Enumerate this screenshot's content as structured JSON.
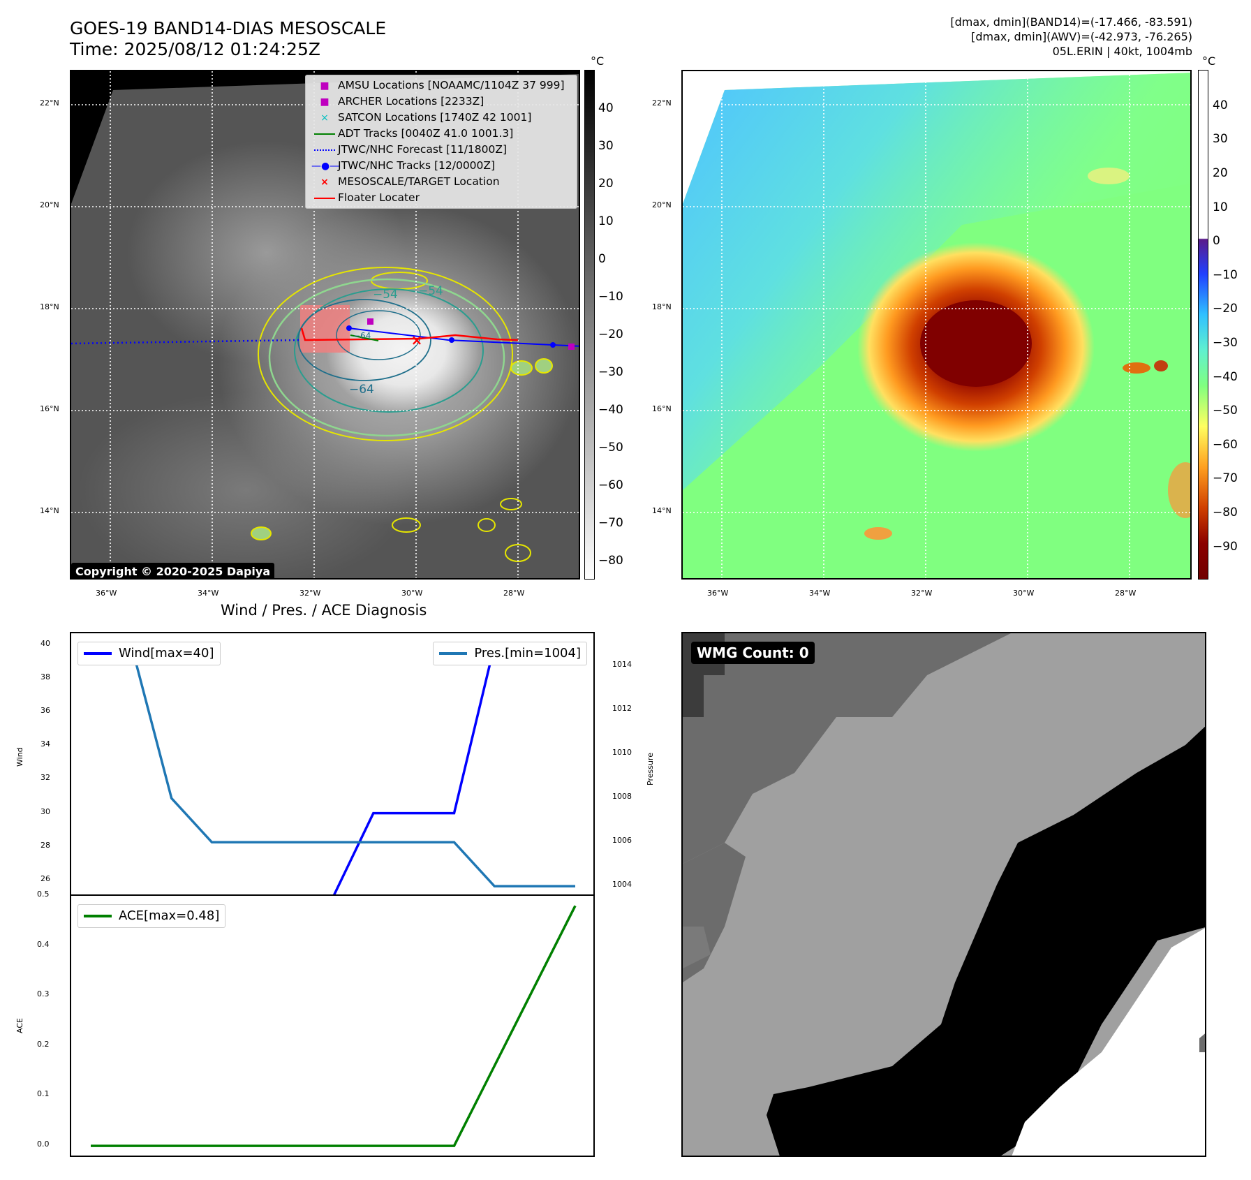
{
  "header": {
    "title_line1": "GOES-19 BAND14-DIAS MESOSCALE",
    "title_line2": "Time: 2025/08/12 01:24:25Z",
    "info_line1": "[dmax, dmin](BAND14)=(-17.466, -83.591)",
    "info_line2": "[dmax, dmin](AWV)=(-42.973, -76.265)",
    "info_line3": "05L.ERIN | 40kt, 1004mb"
  },
  "map_axes": {
    "lat_labels": [
      "22°N",
      "20°N",
      "18°N",
      "16°N",
      "14°N"
    ],
    "lon_labels": [
      "36°W",
      "34°W",
      "32°W",
      "30°W",
      "28°W"
    ],
    "unit": "°C"
  },
  "ir_panel": {
    "colorbar_ticks": [
      "40",
      "30",
      "20",
      "10",
      "0",
      "−10",
      "−20",
      "−30",
      "−40",
      "−50",
      "−60",
      "−70",
      "−80"
    ],
    "contour_labels": [
      "−54",
      "−54",
      "−64",
      "−64"
    ],
    "copyright": "Copyright © 2020-2025 Dapiya",
    "legend": [
      {
        "symbol": "■",
        "color": "#bf00bf",
        "label": "AMSU Locations [NOAAMC/1104Z 37 999]"
      },
      {
        "symbol": "■",
        "color": "#bf00bf",
        "label": "ARCHER Locations [2233Z]"
      },
      {
        "symbol": "×",
        "color": "#00bfbf",
        "label": "SATCON Locations [1740Z 42 1001]"
      },
      {
        "symbol": "line",
        "color": "#008000",
        "label": "ADT Tracks [0040Z 41.0 1001.3]"
      },
      {
        "symbol": "dotted",
        "color": "#0000ff",
        "label": "JTWC/NHC Forecast [11/1800Z]"
      },
      {
        "symbol": "dotline",
        "color": "#0000ff",
        "label": "JTWC/NHC Tracks [12/0000Z]"
      },
      {
        "symbol": "×",
        "color": "#ff0000",
        "label": "MESOSCALE/TARGET Location"
      },
      {
        "symbol": "line",
        "color": "#ff0000",
        "label": "Floater Locater"
      }
    ]
  },
  "awv_panel": {
    "colorbar_ticks": [
      "40",
      "30",
      "20",
      "10",
      "0",
      "−10",
      "−20",
      "−30",
      "−40",
      "−50",
      "−60",
      "−70",
      "−80",
      "−90"
    ]
  },
  "wmg_panel": {
    "label": "WMG Count: 0"
  },
  "chart_data": [
    {
      "type": "line",
      "title": "Wind / Pres. / ACE Diagnosis",
      "ylabel": "Wind",
      "ylabel_right": "Pressure",
      "x": [
        0,
        1,
        2,
        3,
        4,
        5,
        6,
        7,
        8,
        9,
        10,
        11,
        12
      ],
      "ylim": [
        25,
        40.7
      ],
      "ylim_right": [
        1003.5,
        1015.5
      ],
      "yticks": [
        "40",
        "38",
        "36",
        "34",
        "32",
        "30",
        "28",
        "26"
      ],
      "yticks_right": [
        "1014",
        "1012",
        "1010",
        "1008",
        "1006",
        "1004"
      ],
      "series": [
        {
          "name": "Wind[max=40]",
          "color": "#0000ff",
          "values": [
            25,
            25,
            25,
            25,
            25,
            25,
            25,
            30,
            30,
            30,
            40,
            40,
            40
          ]
        },
        {
          "name": "Pres.[min=1004]",
          "color": "#1f77b4",
          "axis": "right",
          "values": [
            1015,
            1015,
            1008,
            1006,
            1006,
            1006,
            1006,
            1006,
            1006,
            1006,
            1004,
            1004,
            1004
          ]
        }
      ]
    },
    {
      "type": "line",
      "ylabel": "ACE",
      "x": [
        0,
        1,
        2,
        3,
        4,
        5,
        6,
        7,
        8,
        9,
        10,
        11,
        12
      ],
      "ylim": [
        -0.025,
        0.5
      ],
      "yticks": [
        "0.5",
        "0.4",
        "0.3",
        "0.2",
        "0.1",
        "0.0"
      ],
      "series": [
        {
          "name": "ACE[max=0.48]",
          "color": "#008000",
          "values": [
            0,
            0,
            0,
            0,
            0,
            0,
            0,
            0,
            0,
            0,
            0.16,
            0.32,
            0.48
          ]
        }
      ]
    }
  ]
}
